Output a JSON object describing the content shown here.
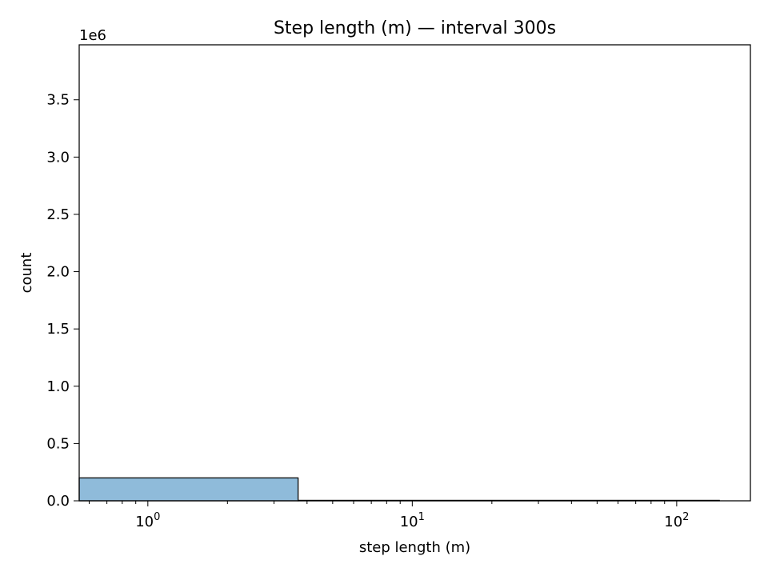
{
  "chart_data": {
    "type": "bar",
    "title": "Step length (m) — interval 300s",
    "xlabel": "step length (m)",
    "ylabel": "count",
    "y_offset_label": "1e6",
    "xscale": "log",
    "xlim": [
      0.55,
      190
    ],
    "ylim": [
      0,
      3980000
    ],
    "grid": false,
    "bar_color": "#8fbbda",
    "edge_color": "#000000",
    "x_major_ticks": [
      {
        "value": 1,
        "base": "10",
        "exp": "0"
      },
      {
        "value": 10,
        "base": "10",
        "exp": "1"
      },
      {
        "value": 100,
        "base": "10",
        "exp": "2"
      }
    ],
    "y_ticks": [
      {
        "value": 0,
        "label": "0.0"
      },
      {
        "value": 500000,
        "label": "0.5"
      },
      {
        "value": 1000000,
        "label": "1.0"
      },
      {
        "value": 1500000,
        "label": "1.5"
      },
      {
        "value": 2000000,
        "label": "2.0"
      },
      {
        "value": 2500000,
        "label": "2.5"
      },
      {
        "value": 3000000,
        "label": "3.0"
      },
      {
        "value": 3500000,
        "label": "3.5"
      }
    ],
    "bins": [
      {
        "x0": 0.55,
        "x1": 3.7,
        "count": 200000
      },
      {
        "x0": 3.7,
        "x1": 145,
        "count": 4000
      }
    ]
  }
}
